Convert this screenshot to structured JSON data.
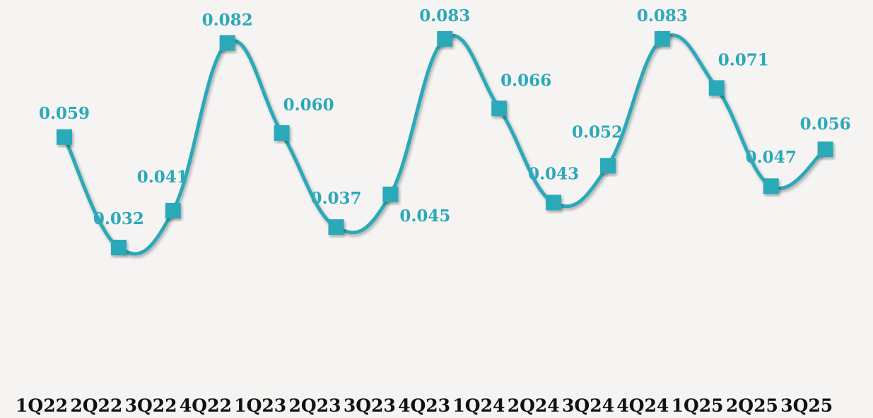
{
  "chart_data": {
    "type": "line",
    "categories": [
      "1Q22",
      "2Q22",
      "3Q22",
      "4Q22",
      "1Q23",
      "2Q23",
      "3Q23",
      "4Q23",
      "1Q24",
      "2Q24",
      "3Q24",
      "4Q24",
      "1Q25",
      "2Q25",
      "3Q25"
    ],
    "series": [
      {
        "values": [
          0.059,
          0.032,
          0.041,
          0.082,
          0.06,
          0.037,
          0.045,
          0.083,
          0.066,
          0.043,
          0.052,
          0.083,
          0.071,
          0.047,
          0.056
        ],
        "labels": [
          "0.059",
          "0.032",
          "0.041",
          "0.082",
          "0.060",
          "0.037",
          "0.045",
          "0.083",
          "0.066",
          "0.043",
          "0.052",
          "0.083",
          "0.071",
          "0.047",
          "0.056"
        ],
        "color": "#2aa9b9",
        "marker": "square",
        "smooth": true
      }
    ],
    "title": "",
    "xlabel": "",
    "ylabel": "",
    "grid": false,
    "legend": "none"
  }
}
